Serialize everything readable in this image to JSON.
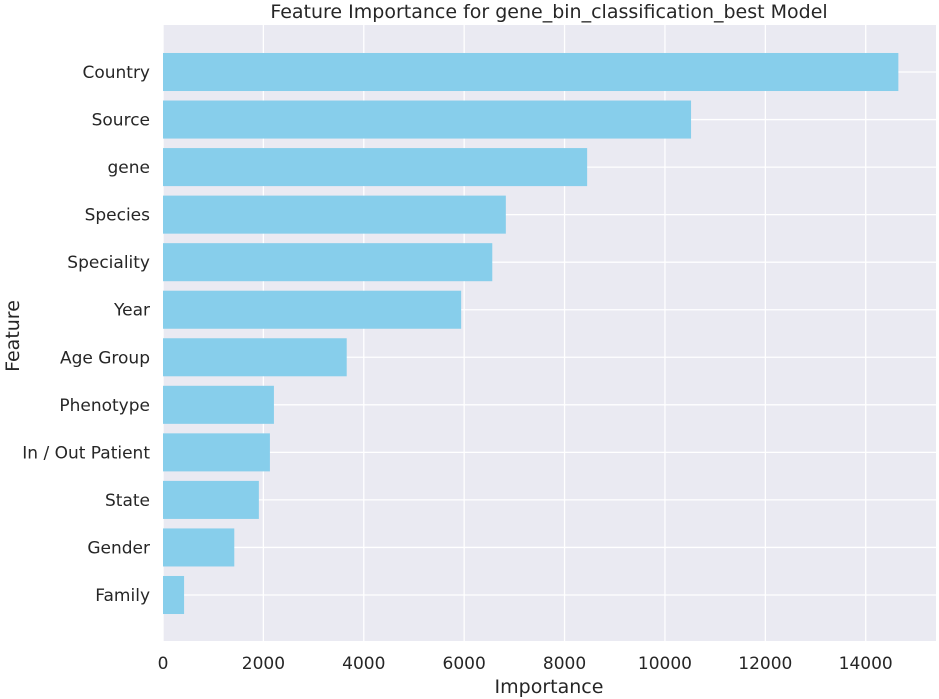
{
  "chart_data": {
    "type": "bar",
    "orientation": "horizontal",
    "title": "Feature Importance for gene_bin_classification_best Model",
    "xlabel": "Importance",
    "ylabel": "Feature",
    "categories": [
      "Country",
      "Source",
      "gene",
      "Species",
      "Speciality",
      "Year",
      "Age Group",
      "Phenotype",
      "In / Out Patient",
      "State",
      "Gender",
      "Family"
    ],
    "values": [
      14650,
      10520,
      8450,
      6830,
      6560,
      5940,
      3660,
      2210,
      2130,
      1910,
      1420,
      420
    ],
    "xlim": [
      0,
      15400
    ],
    "xticks": [
      0,
      2000,
      4000,
      6000,
      8000,
      10000,
      12000,
      14000
    ],
    "grid": true,
    "bar_color": "#87ceeb",
    "background_color": "#eaeaf2",
    "grid_color": "#ffffff"
  }
}
